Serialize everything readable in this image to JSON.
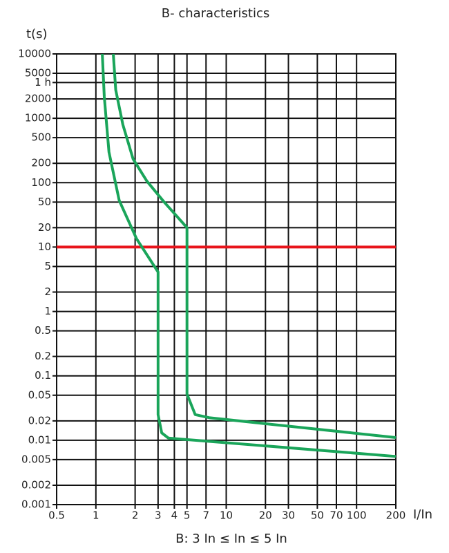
{
  "chart_data": {
    "type": "line",
    "title": "B- characteristics",
    "subtitle": "B: 3 In ≤ In ≤ 5 In",
    "y_label": "t(s)",
    "x_label": "I/In",
    "xscale": "log",
    "yscale": "log",
    "grid": true,
    "xlim": [
      0.5,
      200
    ],
    "xticks": [
      0.5,
      1,
      2,
      3,
      4,
      5,
      7,
      10,
      20,
      30,
      50,
      70,
      100,
      200
    ],
    "ylim": [
      0.001,
      10000
    ],
    "yticks": [
      10000,
      5000,
      {
        "value": 3600,
        "label": "1 h"
      },
      2000,
      1000,
      500,
      200,
      100,
      50,
      20,
      10,
      5,
      2,
      1,
      0.5,
      0.2,
      0.1,
      0.05,
      0.02,
      0.01,
      0.005,
      0.002,
      0.001
    ],
    "reference_line": {
      "value": 10,
      "color": "#e8141b"
    },
    "series": [
      {
        "color": "#1aa55a",
        "x": [
          1.36,
          1.42,
          1.61,
          1.93,
          2.46,
          3.34,
          5,
          5,
          5.78,
          7.38,
          200
        ],
        "values": [
          10000,
          2760,
          800,
          233,
          106,
          50,
          20,
          0.052,
          0.025,
          0.0224,
          0.011
        ]
      },
      {
        "color": "#1aa55a",
        "x": [
          1.12,
          1.16,
          1.26,
          1.51,
          2.05,
          3,
          3,
          3.2,
          3.6,
          200
        ],
        "values": [
          10000,
          2160,
          299,
          53,
          13.5,
          4.1,
          0.025,
          0.013,
          0.0108,
          0.0056
        ]
      }
    ]
  }
}
